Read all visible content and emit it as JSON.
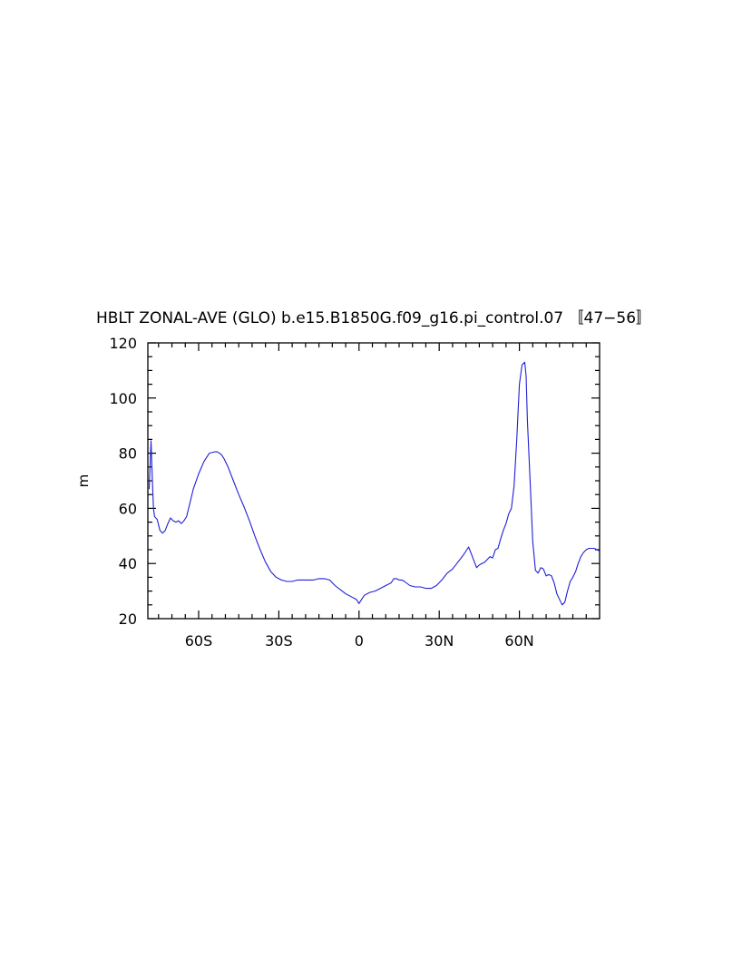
{
  "chart_data": {
    "type": "line",
    "title": "HBLT ZONAL-AVE (GLO) b.e15.B1850G.f09_g16.pi_control.07 〚47−56〛",
    "xlabel": "",
    "ylabel": "m",
    "xlim": [
      -79,
      90
    ],
    "ylim": [
      20,
      120
    ],
    "x_ticks": [
      -60,
      -30,
      0,
      30,
      60
    ],
    "x_tick_labels": [
      "60S",
      "30S",
      "0",
      "30N",
      "60N"
    ],
    "y_ticks": [
      20,
      40,
      60,
      80,
      100,
      120
    ],
    "y_tick_labels": [
      "20",
      "40",
      "60",
      "80",
      "100",
      "120"
    ],
    "grid": false,
    "series": [
      {
        "color": "#1f1fd6",
        "x": [
          -78.5,
          -77.8,
          -77.3,
          -76.9,
          -76.5,
          -75.5,
          -74.5,
          -73.5,
          -72.5,
          -71.5,
          -70.5,
          -69.5,
          -68.5,
          -67.5,
          -66.5,
          -65.5,
          -64.5,
          -63.5,
          -62,
          -60,
          -58,
          -56,
          -54,
          -53,
          -51.5,
          -50.5,
          -49,
          -47,
          -45,
          -43,
          -41,
          -39,
          -37,
          -35,
          -33,
          -31,
          -29,
          -27,
          -25,
          -23,
          -21,
          -19,
          -17,
          -15,
          -13,
          -11,
          -9,
          -7,
          -5,
          -3,
          -1,
          0,
          1,
          2,
          4,
          6,
          8,
          10,
          12,
          13,
          14,
          15,
          16,
          17,
          19,
          21,
          23,
          25,
          27,
          29,
          31,
          33,
          35,
          37,
          39,
          40,
          41,
          42,
          43,
          44,
          45,
          47,
          49,
          50,
          51,
          52,
          53,
          54,
          55,
          56,
          57,
          58,
          59,
          60,
          61,
          62,
          62.5,
          63,
          64,
          65,
          66,
          67,
          68,
          69,
          70,
          71,
          72,
          73,
          74,
          75,
          76,
          77,
          78,
          79,
          80,
          81,
          82,
          83,
          84,
          85,
          86,
          87,
          88,
          89,
          90
        ],
        "y": [
          67,
          84.5,
          70,
          60,
          57,
          56,
          52,
          51,
          52,
          54.5,
          56.5,
          55.5,
          55,
          55.5,
          54.5,
          55.5,
          57,
          61,
          67,
          72.5,
          77,
          80,
          80.5,
          80.5,
          79.5,
          78,
          75,
          70,
          65,
          60.5,
          55.5,
          50,
          45,
          40.5,
          37,
          35,
          34,
          33.5,
          33.5,
          34,
          34,
          34,
          34,
          34.5,
          34.5,
          34,
          32,
          30.5,
          29,
          28,
          27,
          25.5,
          27,
          28.5,
          29.5,
          30,
          31,
          32,
          33,
          34.5,
          34.5,
          34,
          34,
          33.5,
          32,
          31.5,
          31.5,
          31,
          31,
          32,
          34,
          36.5,
          38,
          40.5,
          43,
          44.5,
          46,
          43.5,
          41,
          38.5,
          39.5,
          40.5,
          42.5,
          42,
          45,
          45.5,
          49,
          52,
          54.5,
          58,
          60,
          68,
          85,
          105,
          112,
          113,
          108,
          92,
          70,
          48,
          37.5,
          36.5,
          38.5,
          38,
          35.5,
          36,
          35.5,
          33,
          29,
          27,
          25,
          26,
          30,
          33.5,
          35,
          37,
          40,
          42.5,
          44,
          45,
          45.5,
          45.5,
          45.5,
          45,
          44.5
        ]
      }
    ]
  }
}
